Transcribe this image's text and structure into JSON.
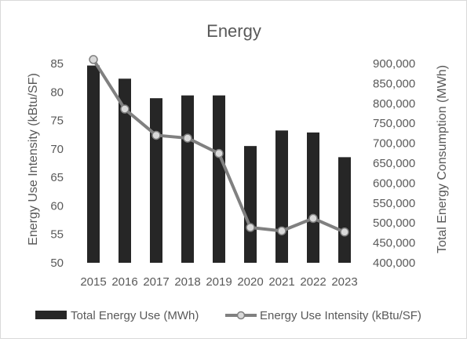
{
  "chart_data": {
    "type": "bar",
    "title": "Energy",
    "categories": [
      "2015",
      "2016",
      "2017",
      "2018",
      "2019",
      "2020",
      "2021",
      "2022",
      "2023"
    ],
    "series": [
      {
        "name": "Total Energy Use (MWh)",
        "type": "bar",
        "axis": "right",
        "color": "#262626",
        "values": [
          895000,
          862000,
          813000,
          820000,
          820000,
          693000,
          732000,
          727000,
          665000
        ]
      },
      {
        "name": "Energy Use Intensity (kBtu/SF)",
        "type": "line",
        "axis": "left",
        "color": "#808080",
        "marker_fill": "#d9d9d9",
        "values": [
          85.7,
          77.0,
          72.4,
          71.9,
          69.2,
          56.2,
          55.6,
          57.8,
          55.4
        ]
      }
    ],
    "ylabel": "Energy Use Intensity (kBtu/SF)",
    "y2label": "Total Energy Consumption (MWh)",
    "ylim": [
      50,
      85
    ],
    "y_ticks": [
      "50",
      "55",
      "60",
      "65",
      "70",
      "75",
      "80",
      "85"
    ],
    "y2lim": [
      400000,
      900000
    ],
    "y2_ticks": [
      "400,000",
      "450,000",
      "500,000",
      "550,000",
      "600,000",
      "650,000",
      "700,000",
      "750,000",
      "800,000",
      "850,000",
      "900,000"
    ],
    "grid": false,
    "legend_position": "bottom"
  }
}
